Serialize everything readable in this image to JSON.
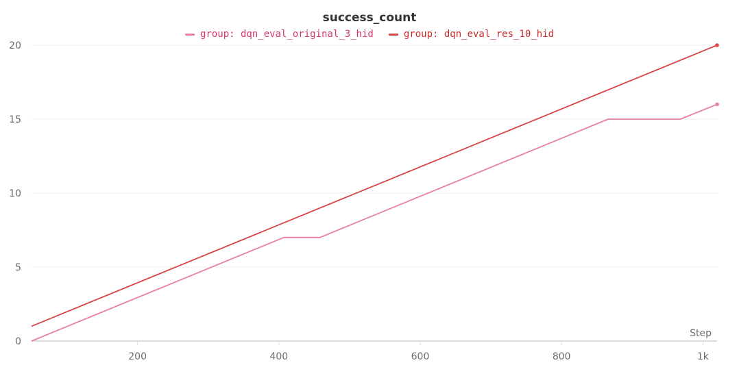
{
  "chart_data": {
    "type": "line",
    "title": "success_count",
    "xlabel": "Step",
    "ylabel": "",
    "xlim": [
      50,
      1020
    ],
    "ylim": [
      0,
      20
    ],
    "grid": true,
    "legend_position": "top-center",
    "y_ticks": [
      {
        "value": 0,
        "label": "0"
      },
      {
        "value": 5,
        "label": "5"
      },
      {
        "value": 10,
        "label": "10"
      },
      {
        "value": 15,
        "label": "15"
      },
      {
        "value": 20,
        "label": "20"
      }
    ],
    "x_ticks": [
      {
        "value": 200,
        "label": "200"
      },
      {
        "value": 400,
        "label": "400"
      },
      {
        "value": 600,
        "label": "600"
      },
      {
        "value": 800,
        "label": "800"
      },
      {
        "value": 1000,
        "label": "1k"
      }
    ],
    "series": [
      {
        "name": "group: dqn_eval_original_3_hid",
        "color": "#e77fa6",
        "x": [
          50,
          407,
          458,
          866,
          968,
          1020
        ],
        "y": [
          0,
          7,
          7,
          15,
          15,
          16
        ]
      },
      {
        "name": "group: dqn_eval_res_10_hid",
        "color": "#d94444",
        "x": [
          50,
          1020
        ],
        "y": [
          1,
          20
        ]
      }
    ]
  }
}
